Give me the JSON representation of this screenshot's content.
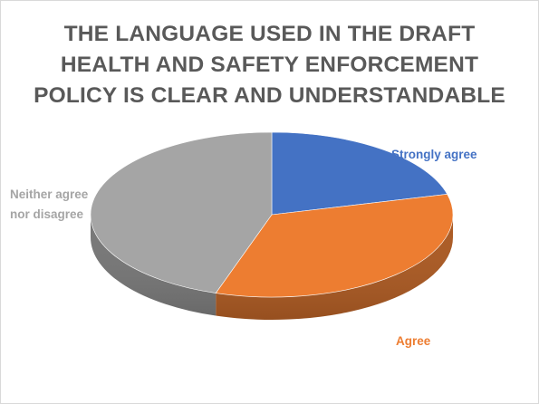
{
  "chart_data": {
    "type": "pie",
    "title_lines": [
      "THE LANGUAGE USED IN THE DRAFT",
      "HEALTH AND SAFETY ENFORCEMENT",
      "POLICY IS CLEAR AND UNDERSTANDABLE"
    ],
    "three_d": true,
    "slices": [
      {
        "label": "Strongly agree",
        "label_lines": [
          "Strongly agree"
        ],
        "value": 21,
        "color": "#4472C4",
        "label_color": "#4472C4"
      },
      {
        "label": "Agree",
        "label_lines": [
          "Agree"
        ],
        "value": 34,
        "color": "#ED7D31",
        "label_color": "#ED7D31"
      },
      {
        "label": "Neither agree nor disagree",
        "label_lines": [
          "Neither agree",
          "nor disagree"
        ],
        "value": 45,
        "color": "#A5A5A5",
        "label_color": "#A5A5A5"
      }
    ]
  }
}
